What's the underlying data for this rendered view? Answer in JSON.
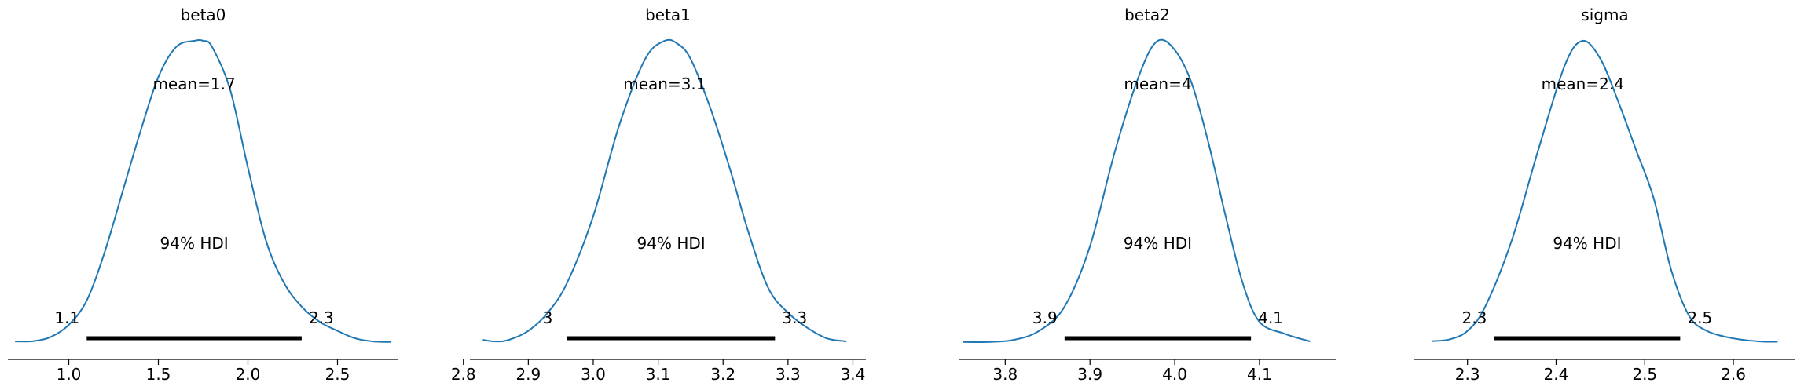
{
  "chart_data": [
    {
      "type": "line",
      "title": "beta0",
      "mean_label": "mean=1.7",
      "hdi_label": "94% HDI",
      "hdi": [
        1.1,
        2.3
      ],
      "hdi_label_text": [
        "1.1",
        "2.3"
      ],
      "xlim": [
        0.66,
        2.84
      ],
      "xticks": [
        1.0,
        1.5,
        2.0,
        2.5
      ],
      "xtick_labels": [
        "1.0",
        "1.5",
        "2.0",
        "2.5"
      ],
      "grid": false,
      "series": [
        {
          "x": [
            0.7,
            0.8,
            0.9,
            1.0,
            1.1,
            1.2,
            1.3,
            1.4,
            1.5,
            1.6,
            1.7,
            1.75,
            1.8,
            1.9,
            2.0,
            2.1,
            2.2,
            2.3,
            2.4,
            2.5,
            2.6,
            2.7,
            2.8
          ],
          "y": [
            0.005,
            0.006,
            0.02,
            0.06,
            0.14,
            0.3,
            0.5,
            0.7,
            0.88,
            0.98,
            1.0,
            1.0,
            0.98,
            0.84,
            0.58,
            0.34,
            0.2,
            0.12,
            0.07,
            0.04,
            0.015,
            0.005,
            0.003
          ]
        }
      ]
    },
    {
      "type": "line",
      "title": "beta1",
      "mean_label": "mean=3.1",
      "hdi_label": "94% HDI",
      "hdi": [
        2.96,
        3.28
      ],
      "hdi_label_text": [
        "3",
        "3.3"
      ],
      "xlim": [
        2.81,
        3.42
      ],
      "xticks": [
        2.8,
        2.9,
        3.0,
        3.1,
        3.2,
        3.3,
        3.4
      ],
      "xtick_labels": [
        "2.8",
        "2.9",
        "3.0",
        "3.1",
        "3.2",
        "3.3",
        "3.4"
      ],
      "grid": false,
      "series": [
        {
          "x": [
            2.83,
            2.85,
            2.87,
            2.9,
            2.93,
            2.96,
            3.0,
            3.04,
            3.08,
            3.11,
            3.13,
            3.15,
            3.18,
            3.21,
            3.24,
            3.27,
            3.3,
            3.33,
            3.36,
            3.39
          ],
          "y": [
            0.01,
            0.005,
            0.01,
            0.04,
            0.1,
            0.2,
            0.42,
            0.72,
            0.94,
            1.0,
            0.99,
            0.94,
            0.78,
            0.58,
            0.36,
            0.18,
            0.1,
            0.05,
            0.015,
            0.005
          ]
        }
      ]
    },
    {
      "type": "line",
      "title": "beta2",
      "mean_label": "mean=4",
      "hdi_label": "94% HDI",
      "hdi": [
        3.87,
        4.09
      ],
      "hdi_label_text": [
        "3.9",
        "4.1"
      ],
      "xlim": [
        3.745,
        4.19
      ],
      "xticks": [
        3.8,
        3.9,
        4.0,
        4.1
      ],
      "xtick_labels": [
        "3.8",
        "3.9",
        "4.0",
        "4.1"
      ],
      "grid": false,
      "series": [
        {
          "x": [
            3.75,
            3.78,
            3.81,
            3.84,
            3.87,
            3.9,
            3.93,
            3.96,
            3.98,
            4.0,
            4.02,
            4.04,
            4.06,
            4.08,
            4.1,
            4.13,
            4.16
          ],
          "y": [
            0.003,
            0.003,
            0.01,
            0.04,
            0.12,
            0.32,
            0.64,
            0.9,
            1.0,
            0.97,
            0.86,
            0.66,
            0.42,
            0.2,
            0.07,
            0.03,
            0.005
          ]
        }
      ]
    },
    {
      "type": "line",
      "title": "sigma",
      "mean_label": "mean=2.4",
      "hdi_label": "94% HDI",
      "hdi": [
        2.33,
        2.54
      ],
      "hdi_label_text": [
        "2.3",
        "2.5"
      ],
      "xlim": [
        2.24,
        2.67
      ],
      "xticks": [
        2.3,
        2.4,
        2.5,
        2.6
      ],
      "xtick_labels": [
        "2.3",
        "2.4",
        "2.5",
        "2.6"
      ],
      "grid": false,
      "series": [
        {
          "x": [
            2.26,
            2.28,
            2.3,
            2.32,
            2.35,
            2.38,
            2.41,
            2.43,
            2.45,
            2.47,
            2.49,
            2.51,
            2.53,
            2.55,
            2.57,
            2.6,
            2.63,
            2.65
          ],
          "y": [
            0.006,
            0.012,
            0.04,
            0.12,
            0.34,
            0.64,
            0.92,
            1.0,
            0.94,
            0.8,
            0.64,
            0.48,
            0.24,
            0.09,
            0.04,
            0.015,
            0.005,
            0.004
          ]
        }
      ]
    }
  ],
  "colors": {
    "curve": "#1f77b4",
    "hdi_bar": "#000000",
    "axis": "#000000"
  }
}
